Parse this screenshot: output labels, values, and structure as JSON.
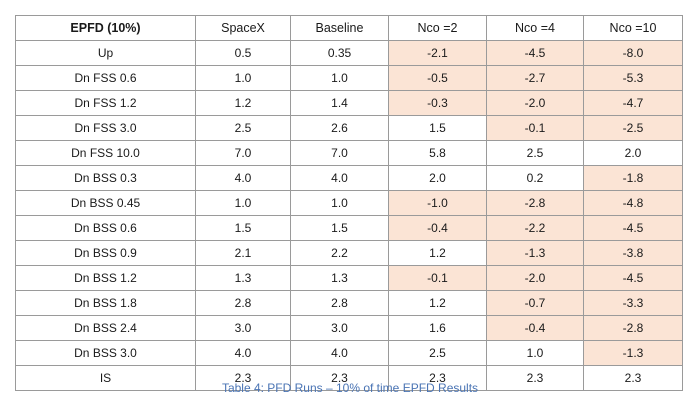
{
  "table": {
    "headers": [
      "EPFD (10%)",
      "SpaceX",
      "Baseline",
      "Nco =2",
      "Nco =4",
      "Nco =10"
    ],
    "rows": [
      {
        "cells": [
          "Up",
          "0.5",
          "0.35",
          "-2.1",
          "-4.5",
          "-8.0"
        ],
        "highlight": [
          false,
          false,
          false,
          true,
          true,
          true
        ]
      },
      {
        "cells": [
          "Dn FSS 0.6",
          "1.0",
          "1.0",
          "-0.5",
          "-2.7",
          "-5.3"
        ],
        "highlight": [
          false,
          false,
          false,
          true,
          true,
          true
        ]
      },
      {
        "cells": [
          "Dn FSS 1.2",
          "1.2",
          "1.4",
          "-0.3",
          "-2.0",
          "-4.7"
        ],
        "highlight": [
          false,
          false,
          false,
          true,
          true,
          true
        ]
      },
      {
        "cells": [
          "Dn FSS 3.0",
          "2.5",
          "2.6",
          "1.5",
          "-0.1",
          "-2.5"
        ],
        "highlight": [
          false,
          false,
          false,
          false,
          true,
          true
        ]
      },
      {
        "cells": [
          "Dn FSS 10.0",
          "7.0",
          "7.0",
          "5.8",
          "2.5",
          "2.0"
        ],
        "highlight": [
          false,
          false,
          false,
          false,
          false,
          false
        ]
      },
      {
        "cells": [
          "Dn BSS 0.3",
          "4.0",
          "4.0",
          "2.0",
          "0.2",
          "-1.8"
        ],
        "highlight": [
          false,
          false,
          false,
          false,
          false,
          true
        ]
      },
      {
        "cells": [
          "Dn BSS 0.45",
          "1.0",
          "1.0",
          "-1.0",
          "-2.8",
          "-4.8"
        ],
        "highlight": [
          false,
          false,
          false,
          true,
          true,
          true
        ]
      },
      {
        "cells": [
          "Dn BSS 0.6",
          "1.5",
          "1.5",
          "-0.4",
          "-2.2",
          "-4.5"
        ],
        "highlight": [
          false,
          false,
          false,
          true,
          true,
          true
        ]
      },
      {
        "cells": [
          "Dn BSS 0.9",
          "2.1",
          "2.2",
          "1.2",
          "-1.3",
          "-3.8"
        ],
        "highlight": [
          false,
          false,
          false,
          false,
          true,
          true
        ]
      },
      {
        "cells": [
          "Dn BSS 1.2",
          "1.3",
          "1.3",
          "-0.1",
          "-2.0",
          "-4.5"
        ],
        "highlight": [
          false,
          false,
          false,
          true,
          true,
          true
        ]
      },
      {
        "cells": [
          "Dn BSS 1.8",
          "2.8",
          "2.8",
          "1.2",
          "-0.7",
          "-3.3"
        ],
        "highlight": [
          false,
          false,
          false,
          false,
          true,
          true
        ]
      },
      {
        "cells": [
          "Dn BSS 2.4",
          "3.0",
          "3.0",
          "1.6",
          "-0.4",
          "-2.8"
        ],
        "highlight": [
          false,
          false,
          false,
          false,
          true,
          true
        ]
      },
      {
        "cells": [
          "Dn BSS 3.0",
          "4.0",
          "4.0",
          "2.5",
          "1.0",
          "-1.3"
        ],
        "highlight": [
          false,
          false,
          false,
          false,
          false,
          true
        ]
      },
      {
        "cells": [
          "IS",
          "2.3",
          "2.3",
          "2.3",
          "2.3",
          "2.3"
        ],
        "highlight": [
          false,
          false,
          false,
          false,
          false,
          false
        ]
      }
    ]
  },
  "caption": "Table 4: PFD Runs – 10% of time EPFD Results",
  "colors": {
    "highlight": "#fbe4d5",
    "border": "#9a9a9a",
    "caption": "#4a74b4"
  }
}
